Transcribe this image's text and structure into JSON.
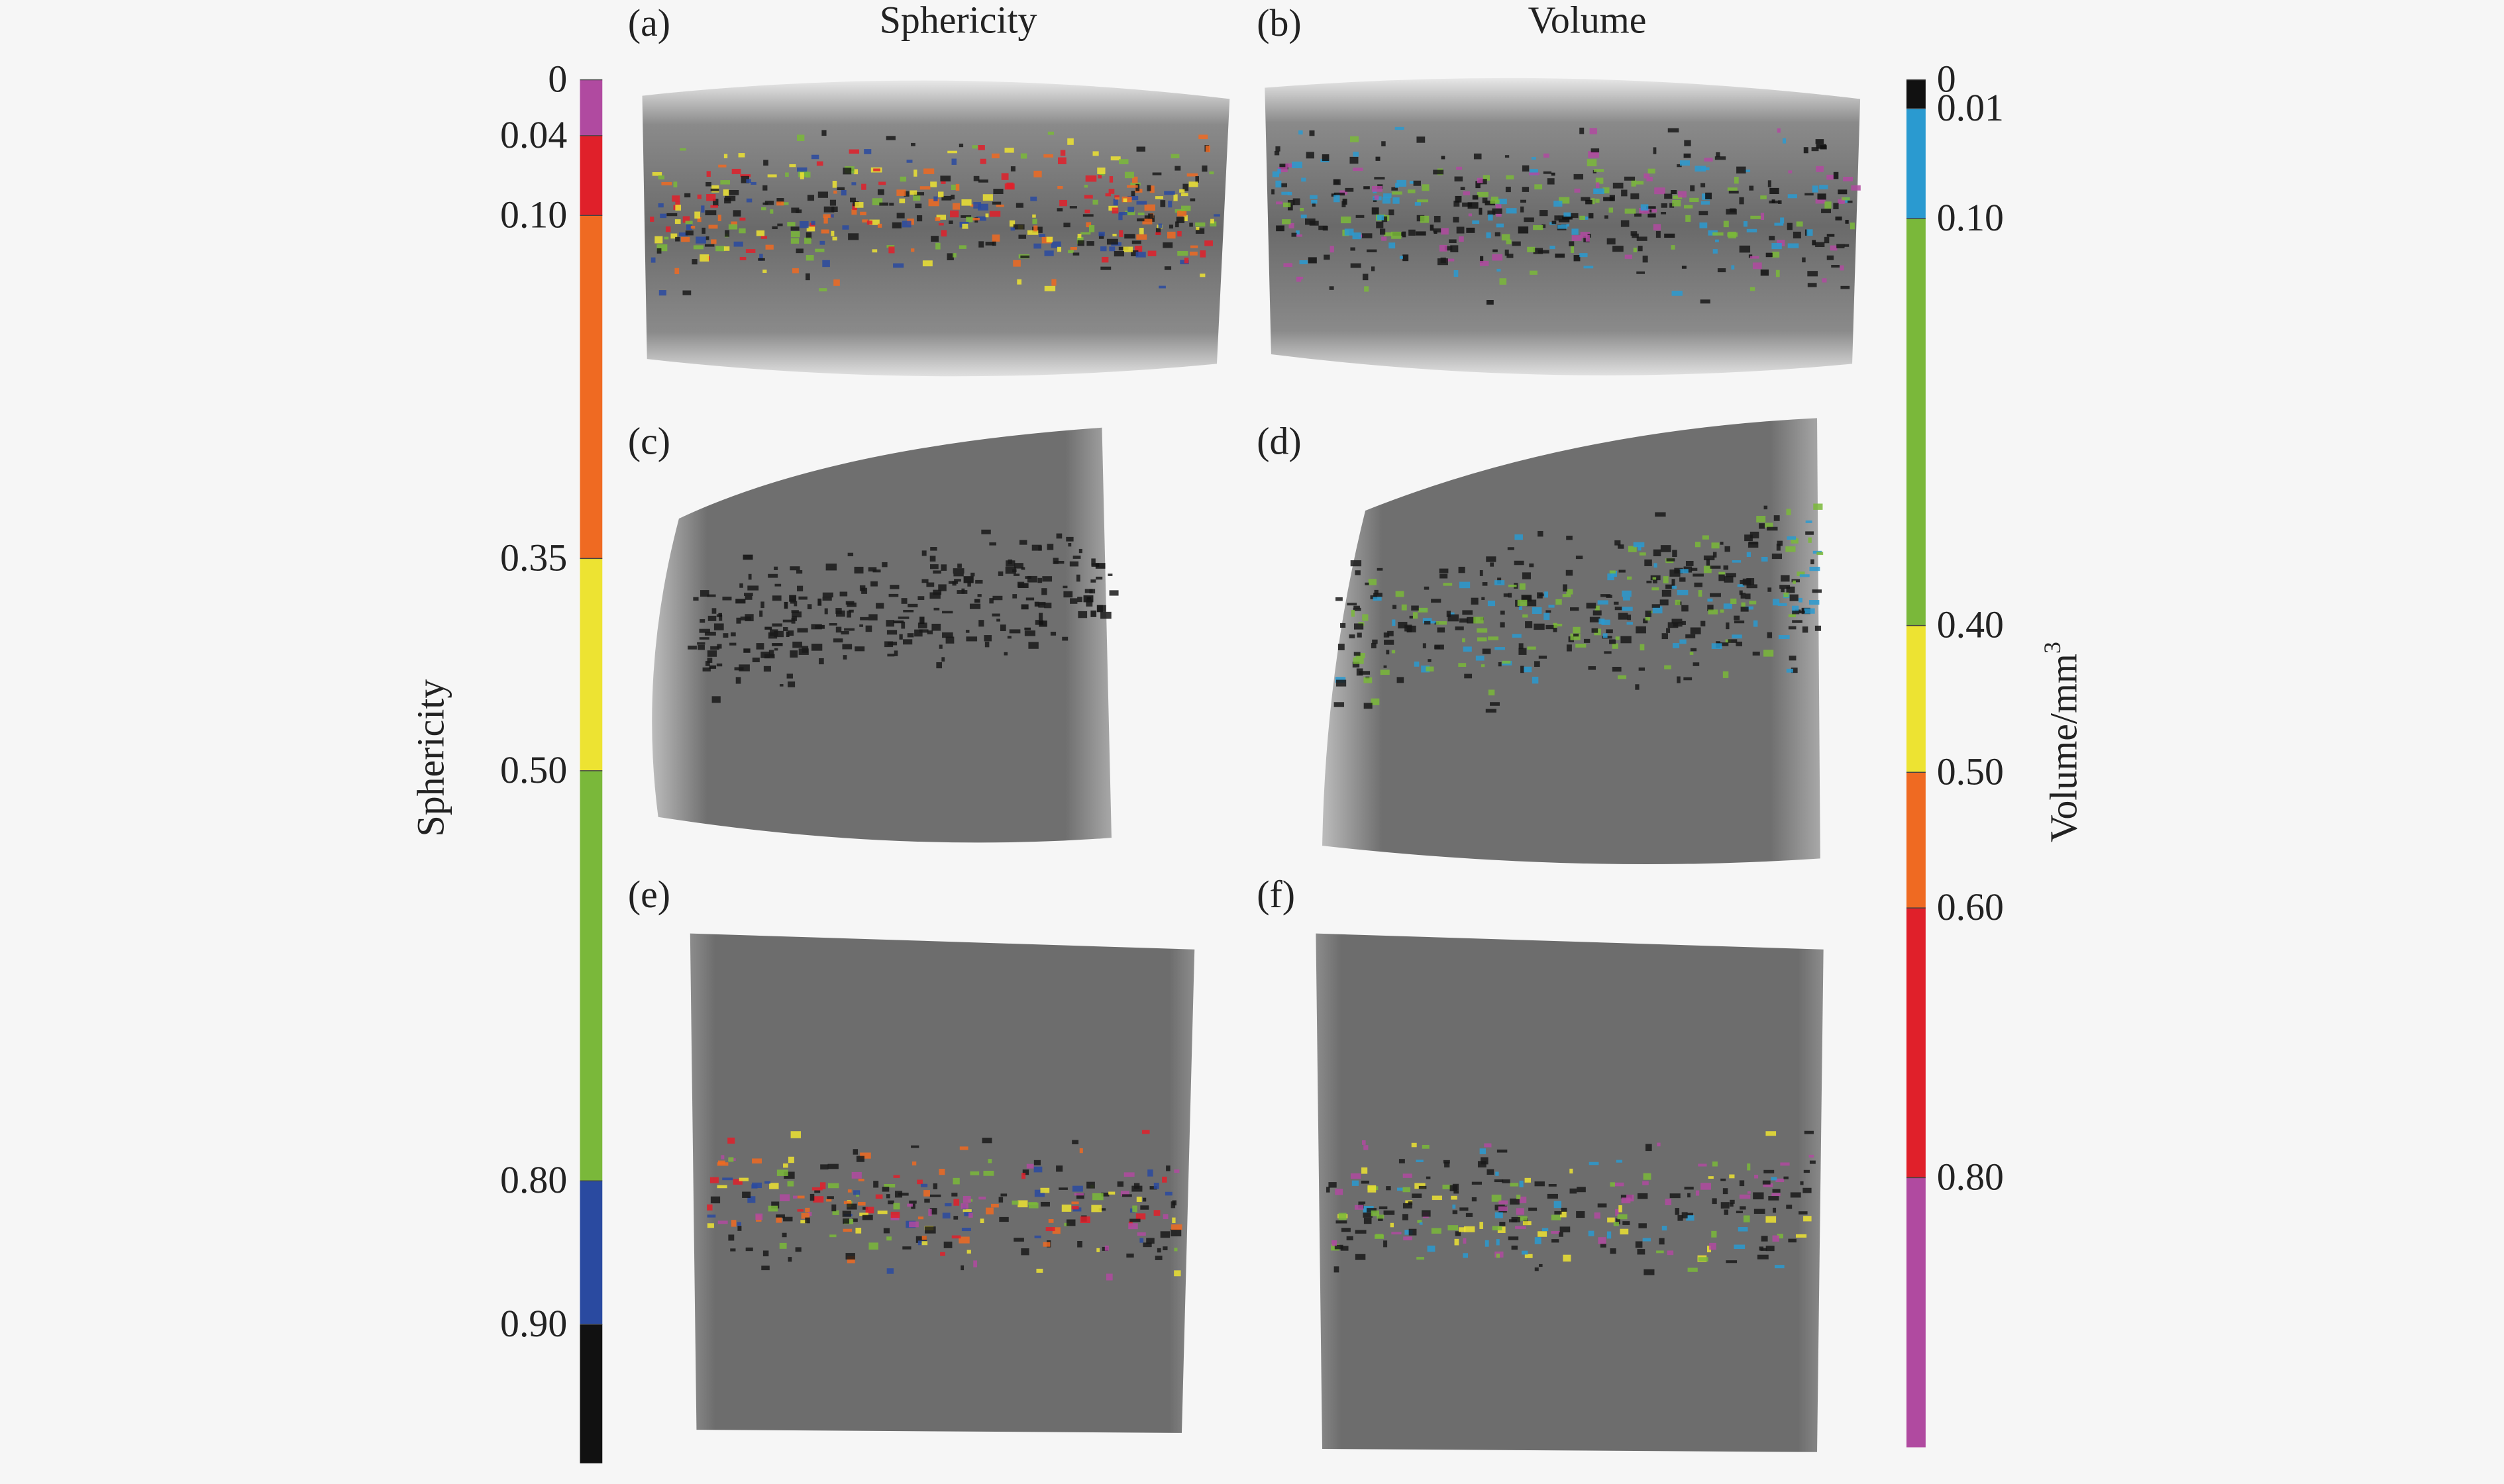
{
  "panels": [
    {
      "label": "(a)"
    },
    {
      "label": "(b)"
    },
    {
      "label": "(c)"
    },
    {
      "label": "(d)"
    },
    {
      "label": "(e)"
    },
    {
      "label": "(f)"
    }
  ],
  "column_titles": [
    "Sphericity",
    "Volume"
  ],
  "sphericity_colorbar": {
    "axis_label": "Sphericity",
    "ticks": [
      {
        "value": 0,
        "label": "0"
      },
      {
        "value": 0.04,
        "label": "0.04"
      },
      {
        "value": 0.1,
        "label": "0.10"
      },
      {
        "value": 0.35,
        "label": "0.35"
      },
      {
        "value": 0.5,
        "label": "0.50"
      },
      {
        "value": 0.8,
        "label": "0.80"
      },
      {
        "value": 0.9,
        "label": "0.90"
      }
    ],
    "colors": [
      "#b04aa0",
      "#e0202a",
      "#ef6a22",
      "#ede332",
      "#7ab83a",
      "#2a4aa0",
      "#111111"
    ]
  },
  "volume_colorbar": {
    "axis_label": "Volume/mm",
    "axis_label_superscript": "3",
    "ticks": [
      {
        "value": 0,
        "label": "0"
      },
      {
        "value": 0.01,
        "label": "0.01"
      },
      {
        "value": 0.1,
        "label": "0.10"
      },
      {
        "value": 0.4,
        "label": "0.40"
      },
      {
        "value": 0.5,
        "label": "0.50"
      },
      {
        "value": 0.6,
        "label": "0.60"
      },
      {
        "value": 0.8,
        "label": "0.80"
      }
    ],
    "colors": [
      "#111111",
      "#2a9ad0",
      "#7ab83a",
      "#ede332",
      "#ef6a22",
      "#e0202a",
      "#b04aa0"
    ]
  }
}
